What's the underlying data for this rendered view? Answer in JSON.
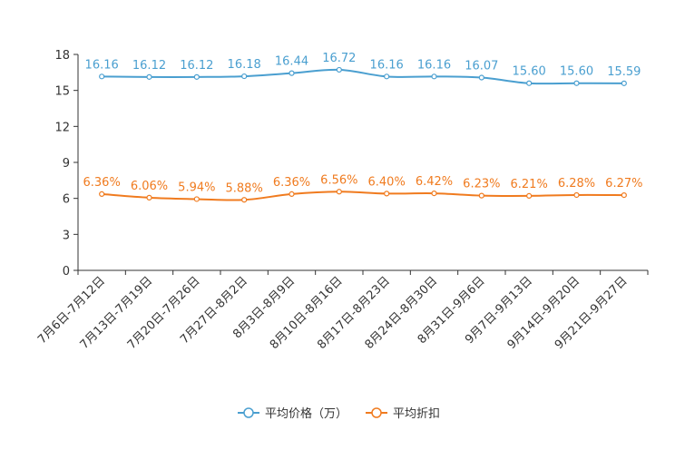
{
  "chart_data": {
    "type": "line",
    "title": "",
    "xlabel": "",
    "ylabel": "",
    "ylim": [
      0,
      18
    ],
    "yticks": [
      0,
      3,
      6,
      9,
      12,
      15,
      18
    ],
    "grid": false,
    "legend_position": "bottom",
    "categories": [
      "7月6日-7月12日",
      "7月13日-7月19日",
      "7月20日-7月26日",
      "7月27日-8月2日",
      "8月3日-8月9日",
      "8月10日-8月16日",
      "8月17日-8月23日",
      "8月24日-8月30日",
      "8月31日-9月6日",
      "9月7日-9月13日",
      "9月14日-9月20日",
      "9月21日-9月27日"
    ],
    "series": [
      {
        "name": "平均价格（万）",
        "color": "#4a9fd0",
        "values": [
          16.16,
          16.12,
          16.12,
          16.18,
          16.44,
          16.72,
          16.16,
          16.16,
          16.07,
          15.6,
          15.6,
          15.59
        ],
        "labels": [
          "16.16",
          "16.12",
          "16.12",
          "16.18",
          "16.44",
          "16.72",
          "16.16",
          "16.16",
          "16.07",
          "15.60",
          "15.60",
          "15.59"
        ]
      },
      {
        "name": "平均折扣",
        "color": "#f07b1f",
        "values": [
          6.36,
          6.06,
          5.94,
          5.88,
          6.36,
          6.56,
          6.4,
          6.42,
          6.23,
          6.21,
          6.28,
          6.27
        ],
        "labels": [
          "6.36%",
          "6.06%",
          "5.94%",
          "5.88%",
          "6.36%",
          "6.56%",
          "6.40%",
          "6.42%",
          "6.23%",
          "6.21%",
          "6.28%",
          "6.27%"
        ]
      }
    ]
  }
}
